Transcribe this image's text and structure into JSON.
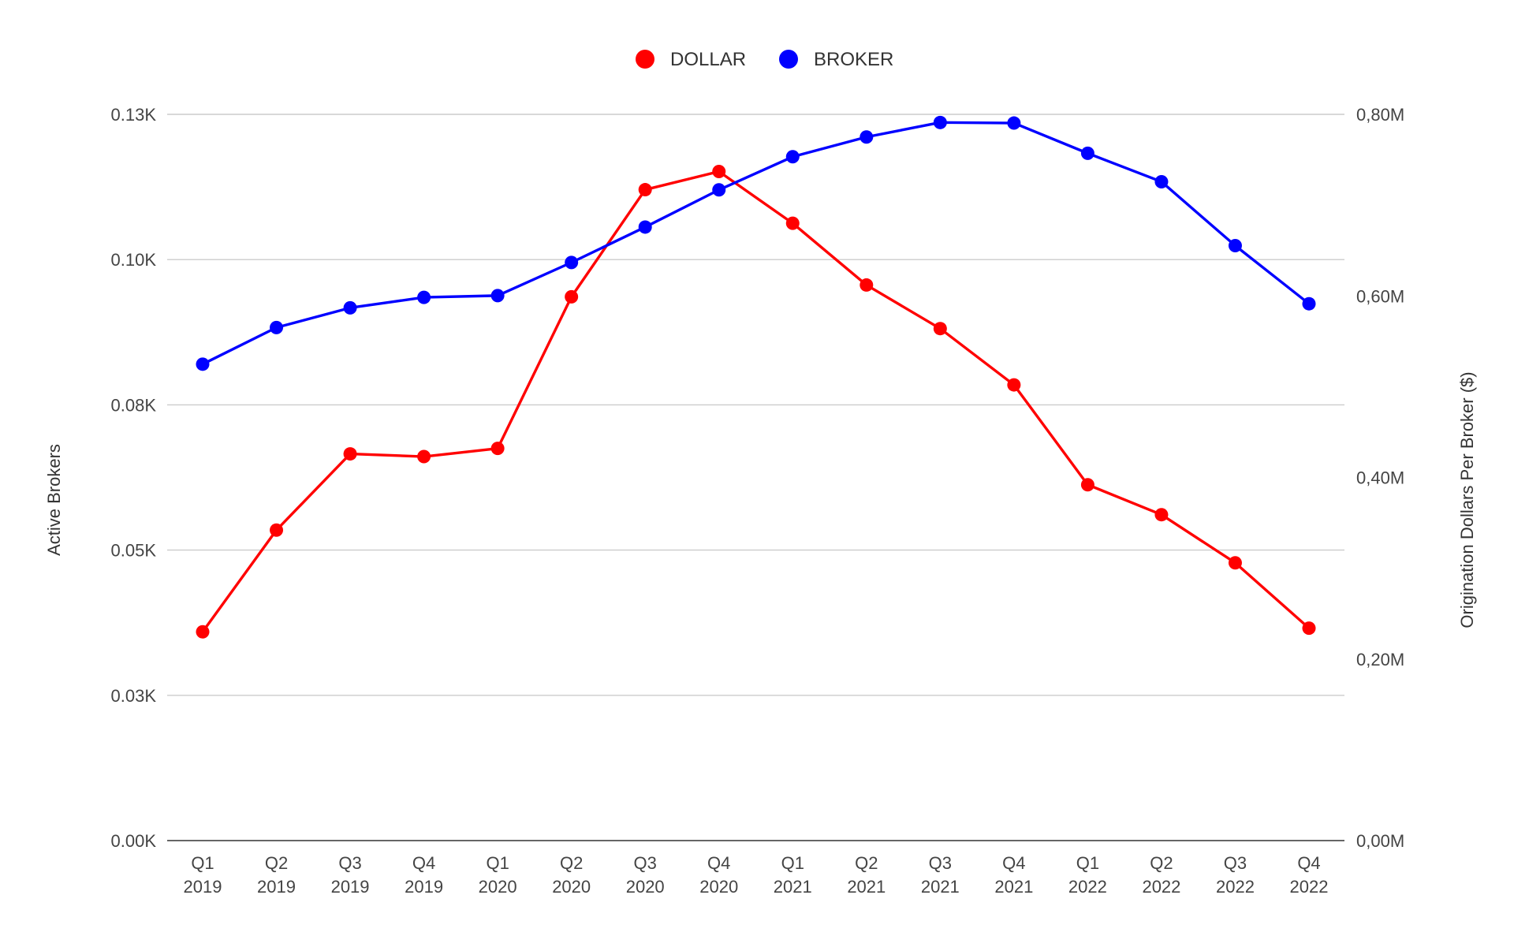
{
  "chart_data": {
    "type": "line",
    "categories": [
      [
        "Q1",
        "2019"
      ],
      [
        "Q2",
        "2019"
      ],
      [
        "Q3",
        "2019"
      ],
      [
        "Q4",
        "2019"
      ],
      [
        "Q1",
        "2020"
      ],
      [
        "Q2",
        "2020"
      ],
      [
        "Q3",
        "2020"
      ],
      [
        "Q4",
        "2020"
      ],
      [
        "Q1",
        "2021"
      ],
      [
        "Q2",
        "2021"
      ],
      [
        "Q3",
        "2021"
      ],
      [
        "Q4",
        "2021"
      ],
      [
        "Q1",
        "2022"
      ],
      [
        "Q2",
        "2022"
      ],
      [
        "Q3",
        "2022"
      ],
      [
        "Q4",
        "2022"
      ]
    ],
    "series": [
      {
        "name": "DOLLAR",
        "axis": "right",
        "color": "#ff0000",
        "values": [
          230000,
          342000,
          426000,
          423000,
          432000,
          599000,
          717000,
          737000,
          680000,
          612000,
          564000,
          502000,
          392000,
          359000,
          306000,
          234000
        ]
      },
      {
        "name": "BROKER",
        "axis": "left",
        "color": "#0000ff",
        "values": [
          82,
          88.3,
          91.7,
          93.5,
          93.8,
          99.5,
          105.6,
          112,
          117.7,
          121.1,
          123.6,
          123.5,
          118.3,
          113.4,
          102.4,
          92.4
        ]
      }
    ],
    "left_axis": {
      "title": "Active Brokers",
      "range": [
        0,
        125
      ],
      "ticks": [
        0,
        25,
        50,
        75,
        100,
        125
      ],
      "tick_labels": [
        "0.00K",
        "0.03K",
        "0.05K",
        "0.08K",
        "0.10K",
        "0.13K"
      ]
    },
    "right_axis": {
      "title": "Origination Dollars Per Broker ($)",
      "range": [
        0,
        800000
      ],
      "ticks": [
        0,
        200000,
        400000,
        600000,
        800000
      ],
      "tick_labels": [
        "0,00M",
        "0,20M",
        "0,40M",
        "0,60M",
        "0,80M"
      ]
    },
    "grid": true,
    "legend_position": "top-center"
  }
}
